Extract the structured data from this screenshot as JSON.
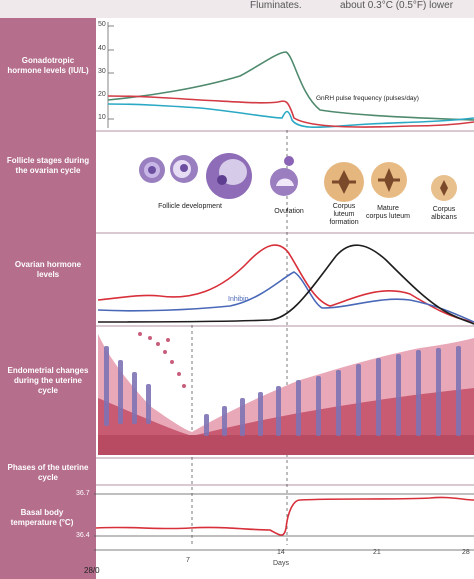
{
  "header": {
    "partial_left": "Fluminates.",
    "partial_right": "about 0.3°C (0.5°F) lower"
  },
  "panels": {
    "gonadotropic": {
      "label": "Gonadotropic hormone levels (IU/L)",
      "yticks": [
        "50",
        "40",
        "30",
        "20",
        "10"
      ],
      "annotation": "GnRH pulse frequency (pulses/day)"
    },
    "follicle": {
      "label": "Follicle stages during the ovarian cycle",
      "stages": [
        "Follicle development",
        "Ovulation",
        "Corpus luteum formation",
        "Mature corpus luteum",
        "Corpus albicans"
      ]
    },
    "ovarian": {
      "label": "Ovarian hormone levels",
      "annotation": "Inhibin"
    },
    "endometrial": {
      "label": "Endometrial changes during the uterine cycle"
    },
    "phases": {
      "label": "Phases of the uterine cycle"
    },
    "bbt": {
      "label": "Basal body temperature (°C)",
      "yticks": [
        "36.7",
        "36.4"
      ],
      "xticks": [
        "28/0",
        "7",
        "14",
        "21",
        "28"
      ],
      "xlabel": "Days"
    }
  },
  "colors": {
    "sidebar": "#b56e8c",
    "lh": "#4f8a6e",
    "fsh": "#2aa8c4",
    "gnrh": "#d23a44",
    "estrogen": "#d8303a",
    "progesterone": "#1d1d1d",
    "inhibin": "#4a68b8"
  }
}
